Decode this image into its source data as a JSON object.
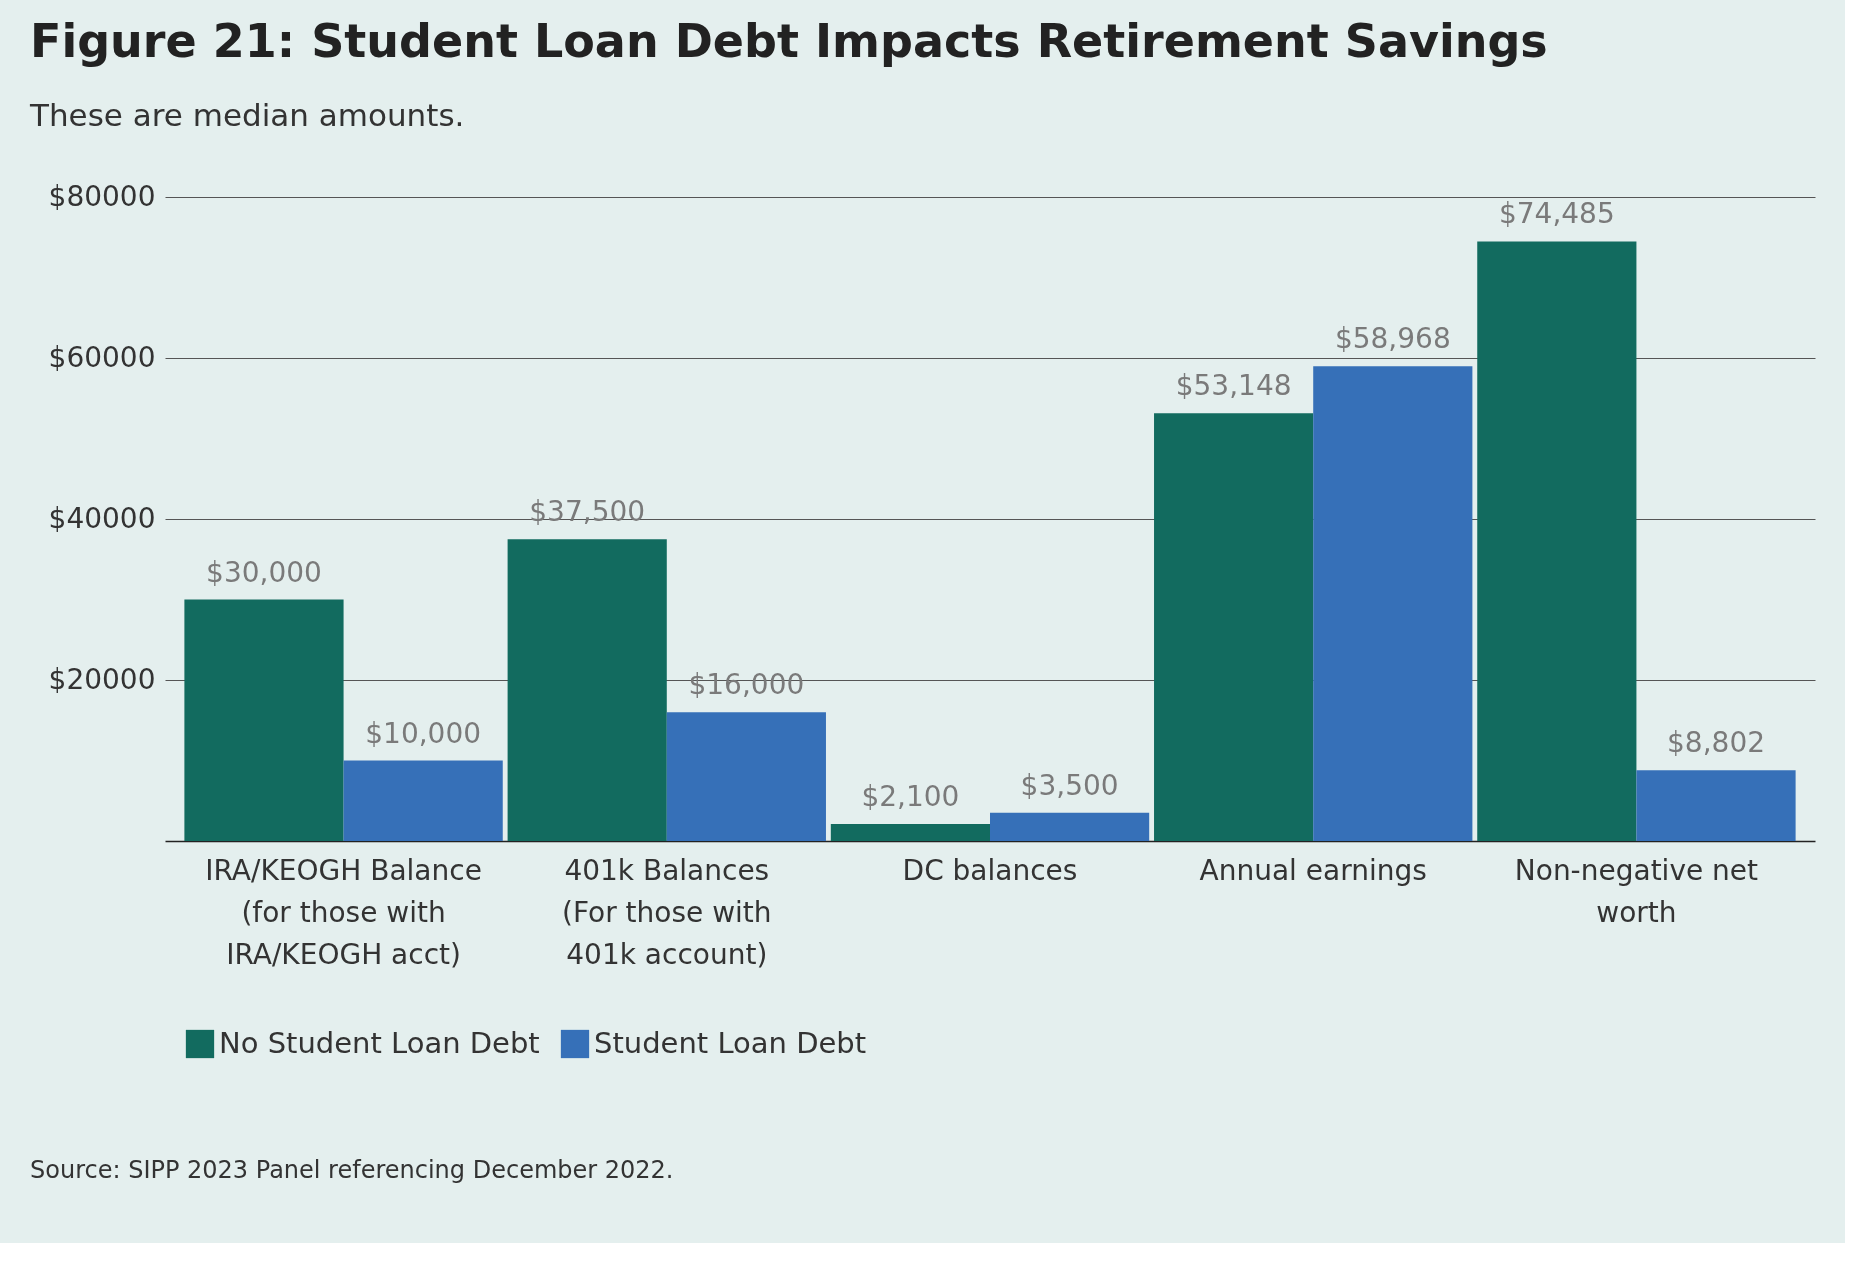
{
  "chart_data": {
    "type": "bar",
    "title": "Figure 21: Student Loan Debt Impacts Retirement Savings",
    "subtitle": "These are median amounts.",
    "categories": [
      "IRA/KEOGH Balance (for those with IRA/KEOGH acct)",
      "401k Balances (For those with 401k account)",
      "DC balances",
      "Annual earnings",
      "Non-negative net worth"
    ],
    "series": [
      {
        "name": "No Student Loan Debt",
        "color": "#126b5f",
        "values": [
          30000,
          37500,
          2100,
          53148,
          74485
        ],
        "value_labels": [
          "$30,000",
          "$37,500",
          "$2,100",
          "$53,148",
          "$74,485"
        ]
      },
      {
        "name": "Student Loan Debt",
        "color": "#3670b8",
        "values": [
          10000,
          16000,
          3500,
          58968,
          8802
        ],
        "value_labels": [
          "$10,000",
          "$16,000",
          "$3,500",
          "$58,968",
          "$8,802"
        ]
      }
    ],
    "ylim": [
      0,
      80000
    ],
    "yticks": [
      {
        "value": 20000,
        "label": "$20000"
      },
      {
        "value": 40000,
        "label": "$40000"
      },
      {
        "value": 60000,
        "label": "$60000"
      },
      {
        "value": 80000,
        "label": "$80000"
      }
    ],
    "grid": "y",
    "legend": "bottom",
    "annotations": [
      "Source: SIPP 2023 Panel referencing December 2022."
    ]
  }
}
